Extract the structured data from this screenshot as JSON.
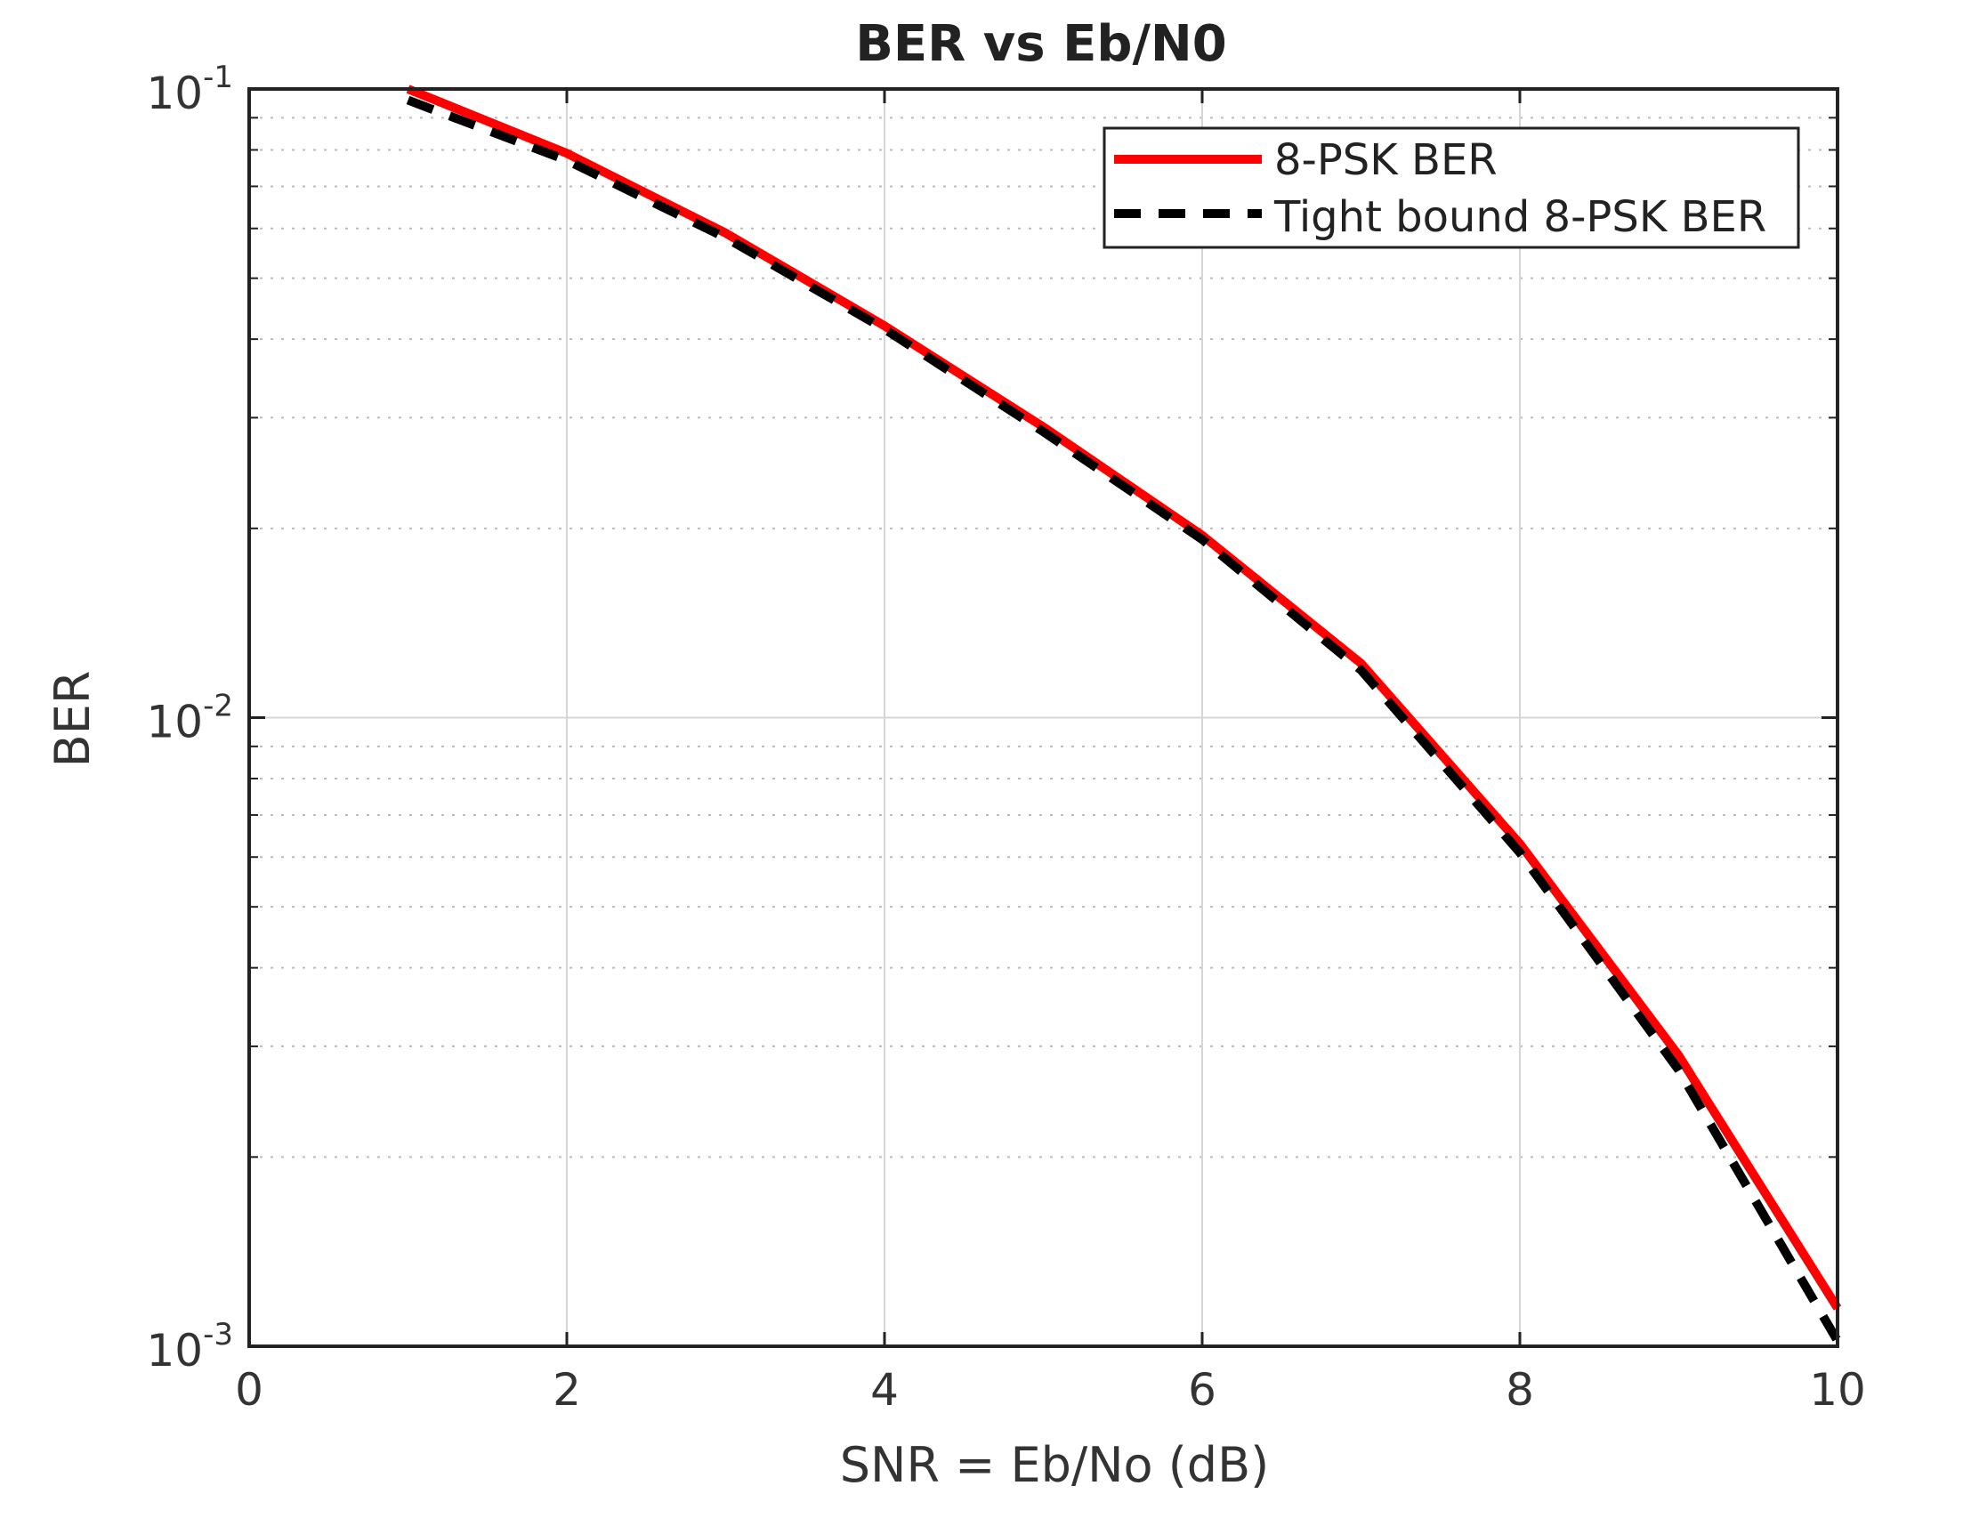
{
  "chart_data": {
    "type": "line",
    "title": "BER vs Eb/N0",
    "xlabel": "SNR = Eb/No (dB)",
    "ylabel": "BER",
    "xlim": [
      0,
      10
    ],
    "ylim": [
      0.001,
      0.1
    ],
    "yscale": "log",
    "grid": true,
    "minor_grid": true,
    "x_ticks": [
      "0",
      "2",
      "4",
      "6",
      "8",
      "10"
    ],
    "y_ticks": [
      {
        "base": "10",
        "exp": "-1",
        "value": 0.1
      },
      {
        "base": "10",
        "exp": "-2",
        "value": 0.01
      },
      {
        "base": "10",
        "exp": "-3",
        "value": 0.001
      }
    ],
    "legend_position": "top-right",
    "x": [
      1,
      2,
      3,
      4,
      5,
      6,
      7,
      8,
      9,
      10
    ],
    "series": [
      {
        "name": "8-PSK BER",
        "color": "#ff0000",
        "style": "solid",
        "values": [
          0.1,
          0.079,
          0.059,
          0.042,
          0.029,
          0.0195,
          0.0122,
          0.0063,
          0.0029,
          0.00115
        ]
      },
      {
        "name": "Tight bound 8-PSK BER",
        "color": "#000000",
        "style": "dashed",
        "values": [
          0.096,
          0.077,
          0.058,
          0.0415,
          0.0285,
          0.0192,
          0.0119,
          0.0061,
          0.00275,
          0.00102
        ]
      }
    ]
  }
}
